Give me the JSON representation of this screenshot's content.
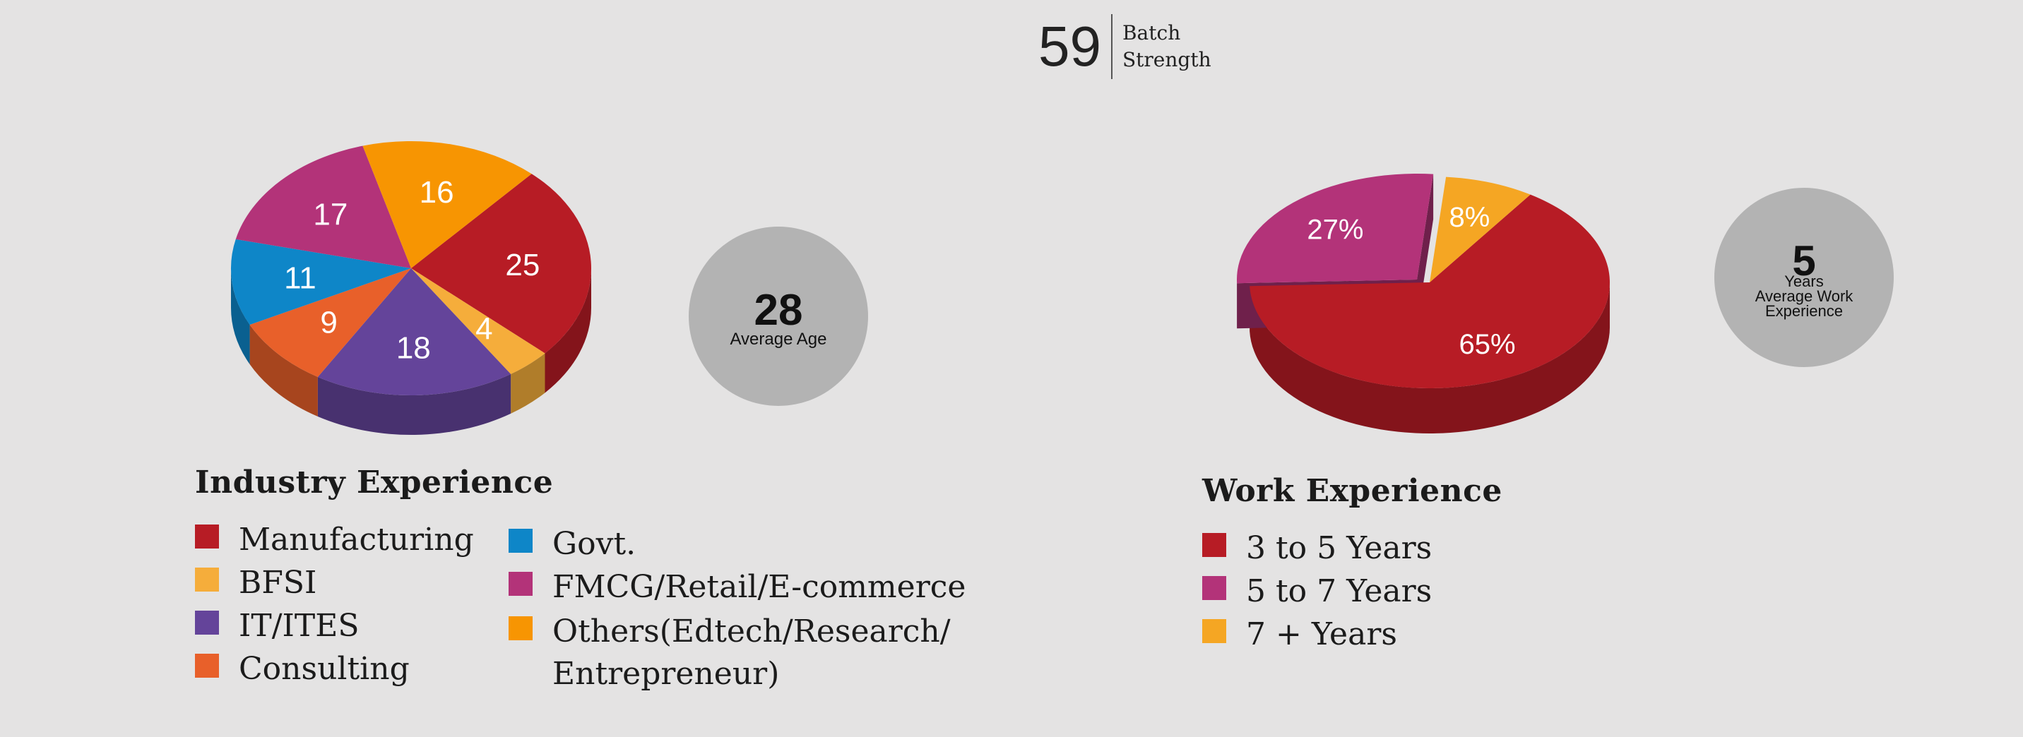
{
  "batch": {
    "value": "59",
    "label_line1": "Batch",
    "label_line2": "Strength"
  },
  "average_age": {
    "value": "28",
    "label": "Average Age"
  },
  "average_work_experience": {
    "value": "5",
    "label_line1": "Years",
    "label_line2": "Average Work",
    "label_line3": "Experience"
  },
  "chart_data": [
    {
      "type": "pie",
      "title": "Industry Experience",
      "labels": [
        "Manufacturing",
        "BFSI",
        "IT/ITES",
        "Consulting",
        "Govt.",
        "FMCG/Retail/E-commerce",
        "Others(Edtech/Research/ Entrepreneur)"
      ],
      "values": [
        25,
        4,
        18,
        9,
        11,
        17,
        16
      ],
      "value_labels": [
        "25",
        "4",
        "18",
        "9",
        "11",
        "17",
        "16"
      ],
      "colors": [
        "#b71c25",
        "#f5ad3b",
        "#64449a",
        "#e8602a",
        "#0e86c8",
        "#b33379",
        "#f79502"
      ],
      "style": "3d"
    },
    {
      "type": "pie",
      "title": "Work Experience",
      "labels": [
        "3 to 5 Years",
        "5 to 7 Years",
        "7 + Years"
      ],
      "values": [
        65,
        27,
        8
      ],
      "value_labels": [
        "65%",
        "27%",
        "8%"
      ],
      "colors": [
        "#b71c25",
        "#b33379",
        "#f5a623"
      ],
      "style": "3d, exploded"
    }
  ],
  "industry_legend": {
    "title": "Industry Experience",
    "items": [
      {
        "label": "Manufacturing",
        "color": "#b71c25"
      },
      {
        "label": "BFSI",
        "color": "#f5ad3b"
      },
      {
        "label": "IT/ITES",
        "color": "#64449a"
      },
      {
        "label": "Consulting",
        "color": "#e8602a"
      },
      {
        "label": "Govt.",
        "color": "#0e86c8"
      },
      {
        "label": "FMCG/Retail/E-commerce",
        "color": "#b33379"
      },
      {
        "label_line1": "Others(Edtech/Research/",
        "label_line2": "Entrepreneur)",
        "color": "#f79502"
      }
    ]
  },
  "work_legend": {
    "title": "Work Experience",
    "items": [
      {
        "label": "3 to 5 Years",
        "color": "#b71c25"
      },
      {
        "label": "5 to 7 Years",
        "color": "#b33379"
      },
      {
        "label": "7 + Years",
        "color": "#f5a623"
      }
    ]
  }
}
